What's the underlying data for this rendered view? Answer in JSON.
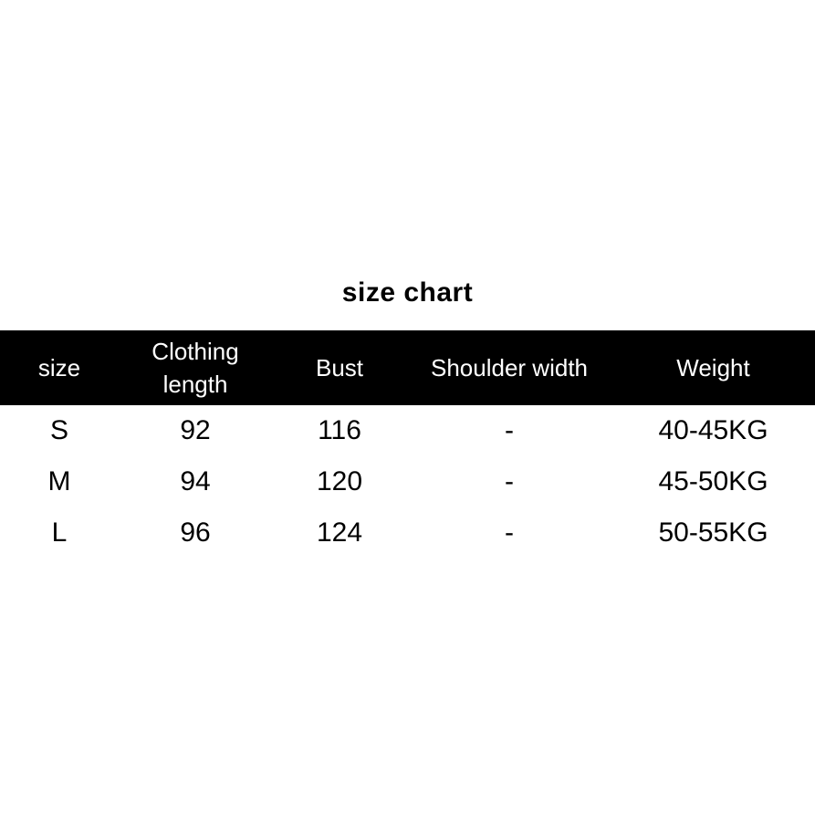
{
  "title": "size chart",
  "style": {
    "page_background": "#ffffff",
    "header_background": "#000000",
    "header_text_color": "#ffffff",
    "body_text_color": "#000000"
  },
  "chart_data": {
    "type": "table",
    "title": "size chart",
    "columns": [
      "size",
      "Clothing length",
      "Bust",
      "Shoulder width",
      "Weight"
    ],
    "rows": [
      [
        "S",
        "92",
        "116",
        "-",
        "40-45KG"
      ],
      [
        "M",
        "94",
        "120",
        "-",
        "45-50KG"
      ],
      [
        "L",
        "96",
        "124",
        "-",
        "50-55KG"
      ]
    ],
    "layout": {
      "header_wrap_note": "Clothing length header wraps to two lines",
      "grid": "off",
      "borders": "none"
    }
  }
}
